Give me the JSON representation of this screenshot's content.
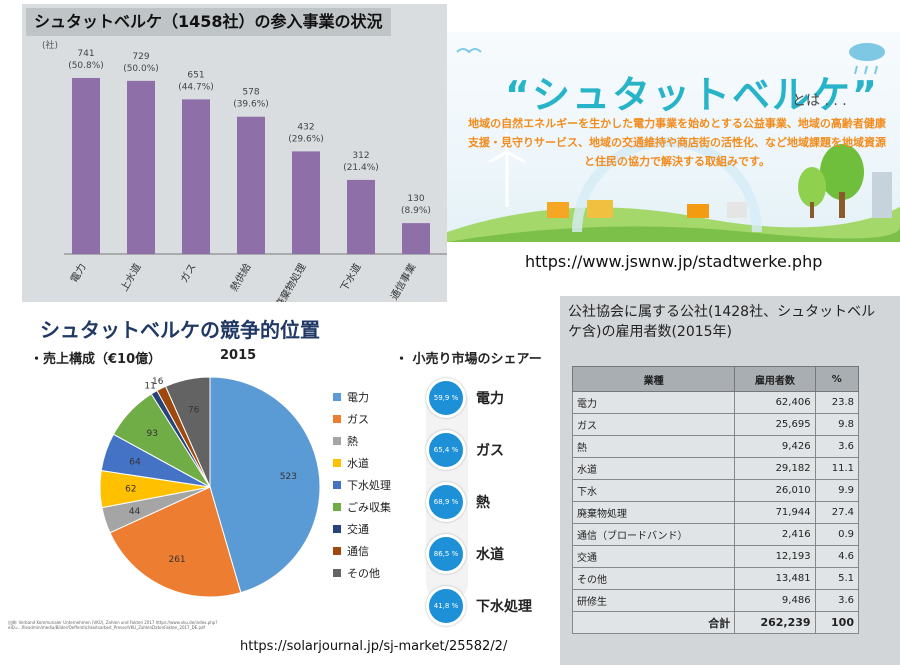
{
  "bar_panel": {
    "title": "シュタットベルケ（1458社）の参入事業の状況",
    "unit": "(社)"
  },
  "banner": {
    "title": "“シュタットベルケ”",
    "suffix": "とは . . .",
    "description": "地域の自然エネルギーを生かした電力事業を始めとする公益事業、地域の高齢者健康支援・見守りサービス、地域の交通維持や商店街の活性化、など地域課題を地域資源と住民の協力で解決する取組みです。"
  },
  "url1": "https://www.jswnw.jp/stadtwerke.php",
  "pie_panel": {
    "title": "シュタットベルケの競争的位置",
    "subtitle_left": "・売上構成（€10億）",
    "year": "2015",
    "subtitle_right": "・ 小売り市場のシェアー",
    "source_note": "出典:  Verband Kommunaler Unternehmen (VKU), Zahlen und Fakten 2017 https://www.vku.de/index.php?eID=...fileadmin/media/Bilder/Oeffentlichkeitsarbeit_Presse/VKU_ZahlenDatenFakten_2017_DE.pdf",
    "shares": [
      {
        "pct": "59,9 %",
        "label": "電力"
      },
      {
        "pct": "65,4 %",
        "label": "ガス"
      },
      {
        "pct": "68,9 %",
        "label": "熱"
      },
      {
        "pct": "86,5 %",
        "label": "水道"
      },
      {
        "pct": "41,8 %",
        "label": "下水処理"
      }
    ]
  },
  "url2": "https://solarjournal.jp/sj-market/25582/2/",
  "table_panel": {
    "title": "公社協会に属する公社(1428社、シュタットベルケ含)の雇用者数(2015年)",
    "headers": [
      "業種",
      "雇用者数",
      "%"
    ],
    "rows": [
      [
        "電力",
        "62,406",
        "23.8"
      ],
      [
        "ガス",
        "25,695",
        "9.8"
      ],
      [
        "熱",
        "9,426",
        "3.6"
      ],
      [
        "水道",
        "29,182",
        "11.1"
      ],
      [
        "下水",
        "26,010",
        "9.9"
      ],
      [
        "廃棄物処理",
        "71,944",
        "27.4"
      ],
      [
        "通信（ブロードバンド）",
        "2,416",
        "0.9"
      ],
      [
        "交通",
        "12,193",
        "4.6"
      ],
      [
        "その他",
        "13,481",
        "5.1"
      ],
      [
        "研修生",
        "9,486",
        "3.6"
      ]
    ],
    "total": [
      "合計",
      "262,239",
      "100"
    ]
  },
  "chart_data": [
    {
      "type": "bar",
      "categories": [
        "電力",
        "上水道",
        "ガス",
        "熱供給",
        "廃棄物処理",
        "下水道",
        "通信事業"
      ],
      "values": [
        741,
        729,
        651,
        578,
        432,
        312,
        130
      ],
      "value_labels": [
        "741",
        "729",
        "651",
        "578",
        "432",
        "312",
        "130"
      ],
      "pct_labels": [
        "(50.8%)",
        "(50.0%)",
        "(44.7%)",
        "(39.6%)",
        "(29.6%)",
        "(21.4%)",
        "(8.9%)"
      ],
      "color": "#8e6fa8",
      "ylim": [
        0,
        800
      ]
    },
    {
      "type": "pie",
      "title": "2015",
      "categories": [
        "電力",
        "ガス",
        "熱",
        "水道",
        "下水処理",
        "ごみ収集",
        "交通",
        "通信",
        "その他"
      ],
      "values": [
        523,
        261,
        44,
        62,
        64,
        93,
        11,
        16,
        76
      ],
      "colors": [
        "#5b9bd5",
        "#ed7d31",
        "#a5a5a5",
        "#ffc000",
        "#4472c4",
        "#70ad47",
        "#264478",
        "#9e480e",
        "#636363"
      ],
      "legend_position": "right"
    }
  ]
}
